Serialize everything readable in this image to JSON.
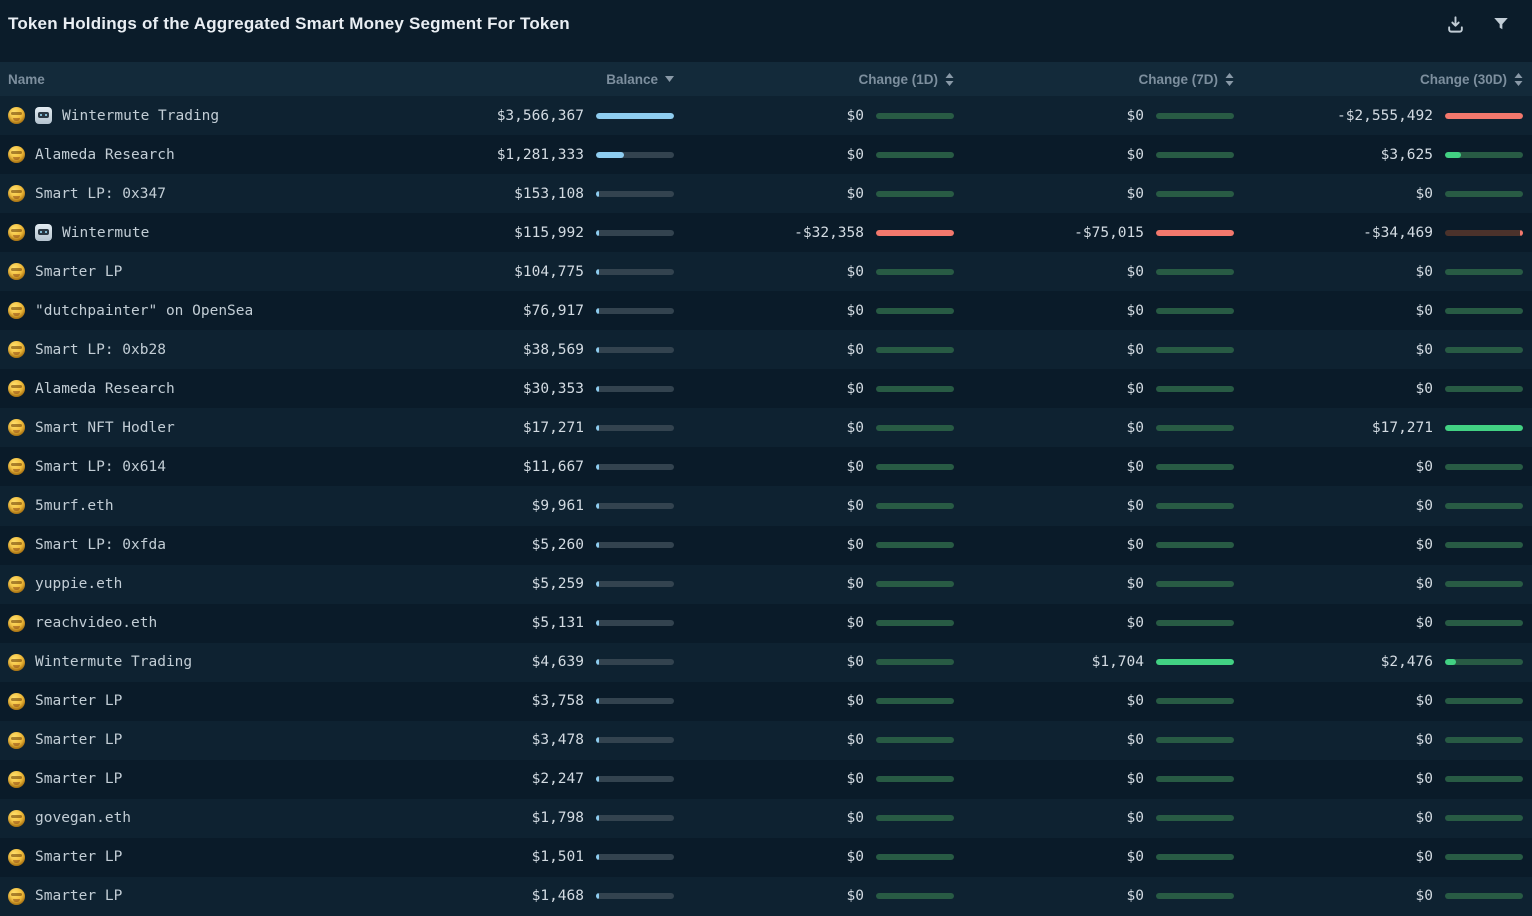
{
  "header": {
    "title": "Token Holdings of the Aggregated Smart Money Segment For Token",
    "actions": [
      {
        "name": "download-icon"
      },
      {
        "name": "filter-icon"
      }
    ]
  },
  "table": {
    "columns": [
      {
        "key": "name",
        "label": "Name",
        "sort": "none"
      },
      {
        "key": "balance",
        "label": "Balance",
        "sort": "desc"
      },
      {
        "key": "change_1d",
        "label": "Change (1D)",
        "sort": "both"
      },
      {
        "key": "change_7d",
        "label": "Change (7D)",
        "sort": "both"
      },
      {
        "key": "change_30d",
        "label": "Change (30D)",
        "sort": "both"
      }
    ],
    "rows": [
      {
        "name": "Wintermute Trading",
        "icons": [
          "money-mouth-emoji",
          "robot-emoji"
        ],
        "balance": {
          "display": "$3,566,367",
          "value": 3566367
        },
        "change_1d": {
          "display": "$0",
          "value": 0
        },
        "change_7d": {
          "display": "$0",
          "value": 0
        },
        "change_30d": {
          "display": "-$2,555,492",
          "value": -2555492
        }
      },
      {
        "name": "Alameda Research",
        "icons": [
          "money-mouth-emoji"
        ],
        "balance": {
          "display": "$1,281,333",
          "value": 1281333
        },
        "change_1d": {
          "display": "$0",
          "value": 0
        },
        "change_7d": {
          "display": "$0",
          "value": 0
        },
        "change_30d": {
          "display": "$3,625",
          "value": 3625
        }
      },
      {
        "name": "Smart LP: 0x347",
        "icons": [
          "money-mouth-emoji"
        ],
        "balance": {
          "display": "$153,108",
          "value": 153108
        },
        "change_1d": {
          "display": "$0",
          "value": 0
        },
        "change_7d": {
          "display": "$0",
          "value": 0
        },
        "change_30d": {
          "display": "$0",
          "value": 0
        }
      },
      {
        "name": "Wintermute",
        "icons": [
          "money-mouth-emoji",
          "robot-emoji"
        ],
        "balance": {
          "display": "$115,992",
          "value": 115992
        },
        "change_1d": {
          "display": "-$32,358",
          "value": -32358
        },
        "change_7d": {
          "display": "-$75,015",
          "value": -75015
        },
        "change_30d": {
          "display": "-$34,469",
          "value": -34469
        }
      },
      {
        "name": "Smarter LP",
        "icons": [
          "money-mouth-emoji"
        ],
        "balance": {
          "display": "$104,775",
          "value": 104775
        },
        "change_1d": {
          "display": "$0",
          "value": 0
        },
        "change_7d": {
          "display": "$0",
          "value": 0
        },
        "change_30d": {
          "display": "$0",
          "value": 0
        }
      },
      {
        "name": "\"dutchpainter\" on OpenSea",
        "icons": [
          "money-mouth-emoji"
        ],
        "balance": {
          "display": "$76,917",
          "value": 76917
        },
        "change_1d": {
          "display": "$0",
          "value": 0
        },
        "change_7d": {
          "display": "$0",
          "value": 0
        },
        "change_30d": {
          "display": "$0",
          "value": 0
        }
      },
      {
        "name": "Smart LP: 0xb28",
        "icons": [
          "money-mouth-emoji"
        ],
        "balance": {
          "display": "$38,569",
          "value": 38569
        },
        "change_1d": {
          "display": "$0",
          "value": 0
        },
        "change_7d": {
          "display": "$0",
          "value": 0
        },
        "change_30d": {
          "display": "$0",
          "value": 0
        }
      },
      {
        "name": "Alameda Research",
        "icons": [
          "money-mouth-emoji"
        ],
        "balance": {
          "display": "$30,353",
          "value": 30353
        },
        "change_1d": {
          "display": "$0",
          "value": 0
        },
        "change_7d": {
          "display": "$0",
          "value": 0
        },
        "change_30d": {
          "display": "$0",
          "value": 0
        }
      },
      {
        "name": "Smart NFT Hodler",
        "icons": [
          "money-mouth-emoji"
        ],
        "balance": {
          "display": "$17,271",
          "value": 17271
        },
        "change_1d": {
          "display": "$0",
          "value": 0
        },
        "change_7d": {
          "display": "$0",
          "value": 0
        },
        "change_30d": {
          "display": "$17,271",
          "value": 17271
        }
      },
      {
        "name": "Smart LP: 0x614",
        "icons": [
          "money-mouth-emoji"
        ],
        "balance": {
          "display": "$11,667",
          "value": 11667
        },
        "change_1d": {
          "display": "$0",
          "value": 0
        },
        "change_7d": {
          "display": "$0",
          "value": 0
        },
        "change_30d": {
          "display": "$0",
          "value": 0
        }
      },
      {
        "name": "5murf.eth",
        "icons": [
          "money-mouth-emoji"
        ],
        "balance": {
          "display": "$9,961",
          "value": 9961
        },
        "change_1d": {
          "display": "$0",
          "value": 0
        },
        "change_7d": {
          "display": "$0",
          "value": 0
        },
        "change_30d": {
          "display": "$0",
          "value": 0
        }
      },
      {
        "name": "Smart LP: 0xfda",
        "icons": [
          "money-mouth-emoji"
        ],
        "balance": {
          "display": "$5,260",
          "value": 5260
        },
        "change_1d": {
          "display": "$0",
          "value": 0
        },
        "change_7d": {
          "display": "$0",
          "value": 0
        },
        "change_30d": {
          "display": "$0",
          "value": 0
        }
      },
      {
        "name": "yuppie.eth",
        "icons": [
          "money-mouth-emoji"
        ],
        "balance": {
          "display": "$5,259",
          "value": 5259
        },
        "change_1d": {
          "display": "$0",
          "value": 0
        },
        "change_7d": {
          "display": "$0",
          "value": 0
        },
        "change_30d": {
          "display": "$0",
          "value": 0
        }
      },
      {
        "name": "reachvideo.eth",
        "icons": [
          "money-mouth-emoji"
        ],
        "balance": {
          "display": "$5,131",
          "value": 5131
        },
        "change_1d": {
          "display": "$0",
          "value": 0
        },
        "change_7d": {
          "display": "$0",
          "value": 0
        },
        "change_30d": {
          "display": "$0",
          "value": 0
        }
      },
      {
        "name": "Wintermute Trading",
        "icons": [
          "money-mouth-emoji"
        ],
        "balance": {
          "display": "$4,639",
          "value": 4639
        },
        "change_1d": {
          "display": "$0",
          "value": 0
        },
        "change_7d": {
          "display": "$1,704",
          "value": 1704
        },
        "change_30d": {
          "display": "$2,476",
          "value": 2476
        }
      },
      {
        "name": "Smarter LP",
        "icons": [
          "money-mouth-emoji"
        ],
        "balance": {
          "display": "$3,758",
          "value": 3758
        },
        "change_1d": {
          "display": "$0",
          "value": 0
        },
        "change_7d": {
          "display": "$0",
          "value": 0
        },
        "change_30d": {
          "display": "$0",
          "value": 0
        }
      },
      {
        "name": "Smarter LP",
        "icons": [
          "money-mouth-emoji"
        ],
        "balance": {
          "display": "$3,478",
          "value": 3478
        },
        "change_1d": {
          "display": "$0",
          "value": 0
        },
        "change_7d": {
          "display": "$0",
          "value": 0
        },
        "change_30d": {
          "display": "$0",
          "value": 0
        }
      },
      {
        "name": "Smarter LP",
        "icons": [
          "money-mouth-emoji"
        ],
        "balance": {
          "display": "$2,247",
          "value": 2247
        },
        "change_1d": {
          "display": "$0",
          "value": 0
        },
        "change_7d": {
          "display": "$0",
          "value": 0
        },
        "change_30d": {
          "display": "$0",
          "value": 0
        }
      },
      {
        "name": "govegan.eth",
        "icons": [
          "money-mouth-emoji"
        ],
        "balance": {
          "display": "$1,798",
          "value": 1798
        },
        "change_1d": {
          "display": "$0",
          "value": 0
        },
        "change_7d": {
          "display": "$0",
          "value": 0
        },
        "change_30d": {
          "display": "$0",
          "value": 0
        }
      },
      {
        "name": "Smarter LP",
        "icons": [
          "money-mouth-emoji"
        ],
        "balance": {
          "display": "$1,501",
          "value": 1501
        },
        "change_1d": {
          "display": "$0",
          "value": 0
        },
        "change_7d": {
          "display": "$0",
          "value": 0
        },
        "change_30d": {
          "display": "$0",
          "value": 0
        }
      },
      {
        "name": "Smarter LP",
        "icons": [
          "money-mouth-emoji"
        ],
        "balance": {
          "display": "$1,468",
          "value": 1468
        },
        "change_1d": {
          "display": "$0",
          "value": 0
        },
        "change_7d": {
          "display": "$0",
          "value": 0
        },
        "change_30d": {
          "display": "$0",
          "value": 0
        }
      }
    ]
  },
  "colors": {
    "balance_fill": "#8ecdf0",
    "balance_track": "#33434f",
    "positive_fill": "#42d183",
    "positive_track": "#285b44",
    "negative_fill": "#f3786d",
    "negative_track": "#4b322b"
  }
}
